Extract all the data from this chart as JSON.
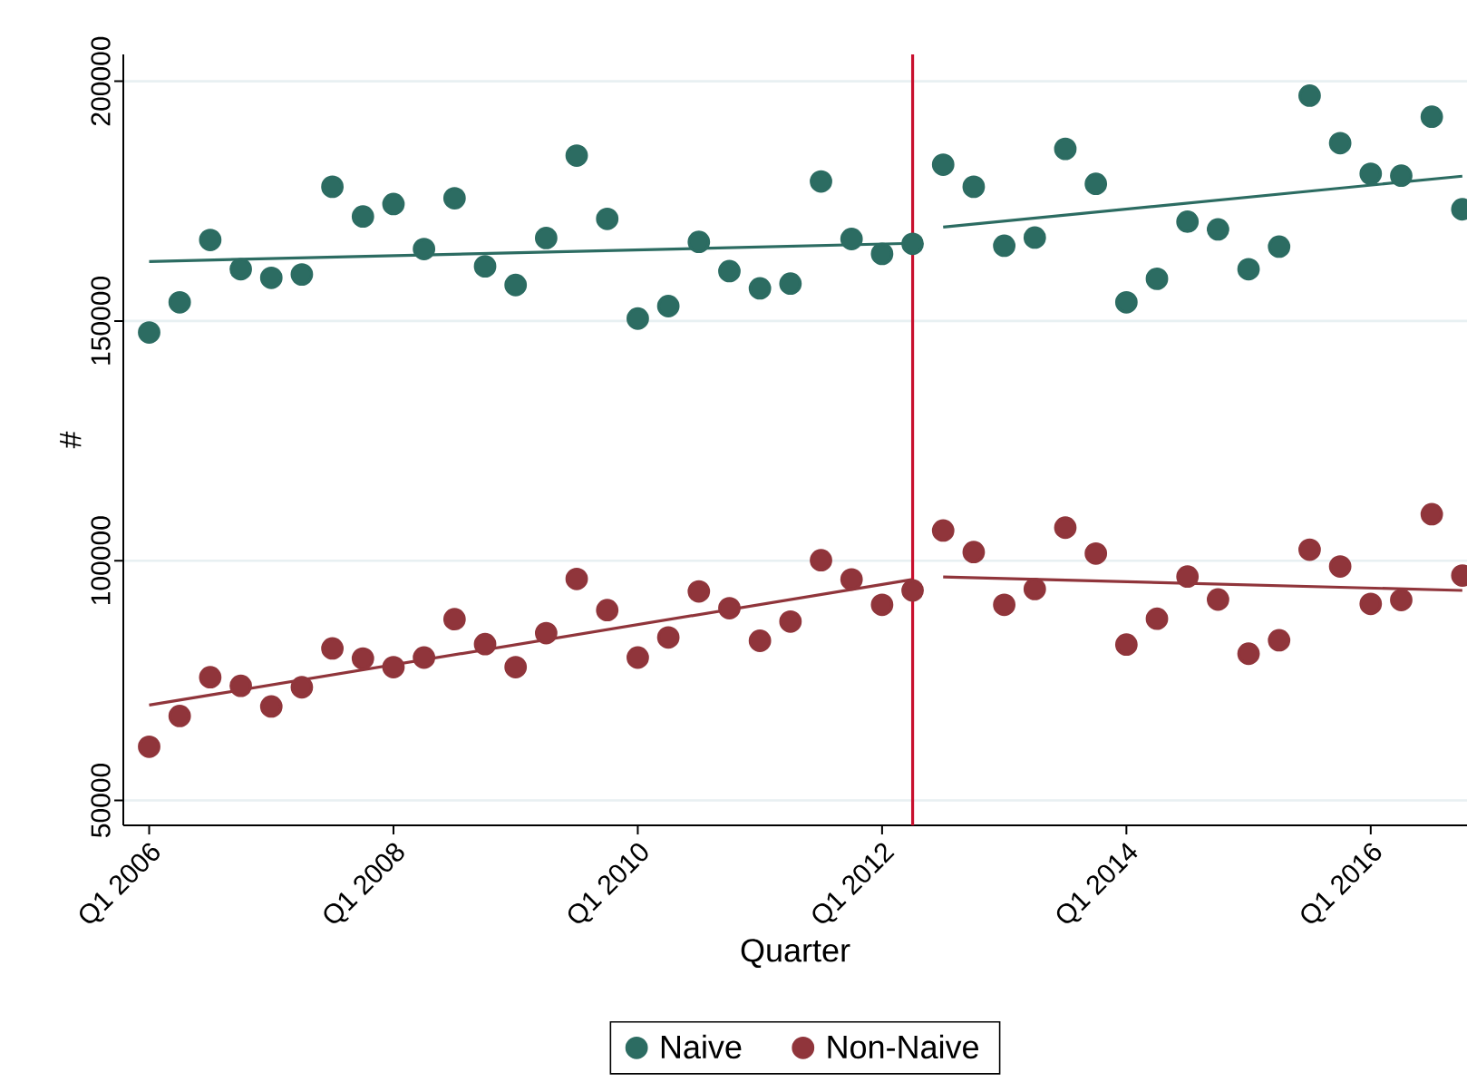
{
  "chart_data": {
    "type": "scatter",
    "xlabel": "Quarter",
    "ylabel": "#",
    "x": [
      "2006-01",
      "2006-04",
      "2006-07",
      "2006-10",
      "2007-01",
      "2007-04",
      "2007-07",
      "2007-10",
      "2008-01",
      "2008-04",
      "2008-07",
      "2008-10",
      "2009-01",
      "2009-04",
      "2009-07",
      "2009-10",
      "2010-01",
      "2010-04",
      "2010-07",
      "2010-10",
      "2011-01",
      "2011-04",
      "2011-07",
      "2011-10",
      "2012-01",
      "2012-04",
      "2012-07",
      "2012-10",
      "2013-01",
      "2013-04",
      "2013-07",
      "2013-10",
      "2014-01",
      "2014-04",
      "2014-07",
      "2014-10",
      "2015-01",
      "2015-04",
      "2015-07",
      "2015-10",
      "2016-01",
      "2016-04",
      "2016-07",
      "2016-10"
    ],
    "series": [
      {
        "name": "Naive",
        "color": "#2c6c62",
        "values": [
          147600,
          153900,
          166900,
          160800,
          159000,
          159700,
          178000,
          171800,
          174400,
          165000,
          175600,
          161400,
          157500,
          167300,
          184500,
          171300,
          150500,
          153100,
          166500,
          160400,
          156800,
          157800,
          179100,
          167100,
          164000,
          166100,
          182600,
          178000,
          165700,
          167400,
          185900,
          178600,
          153900,
          158800,
          170700,
          169100,
          160800,
          165500,
          197000,
          187100,
          180700,
          180300,
          192600,
          173300
        ]
      },
      {
        "name": "Non-Naive",
        "color": "#90353b",
        "values": [
          61200,
          67600,
          75700,
          73900,
          69600,
          73600,
          81700,
          79600,
          77800,
          79800,
          87800,
          82600,
          77800,
          84900,
          96200,
          89700,
          79800,
          84000,
          93600,
          90100,
          83300,
          87300,
          100100,
          96100,
          90800,
          93800,
          106300,
          101800,
          90800,
          94100,
          106900,
          101500,
          82500,
          87900,
          96700,
          91900,
          80600,
          83400,
          102300,
          98800,
          91000,
          91800,
          109700,
          96900
        ]
      },
      {
        "type": "line",
        "marker": "none",
        "color": "#2c6c62",
        "x": [
          "2006-01",
          "2012-04"
        ],
        "values": [
          162400,
          166200
        ]
      },
      {
        "type": "line",
        "marker": "none",
        "color": "#2c6c62",
        "x": [
          "2012-07",
          "2016-10"
        ],
        "values": [
          169600,
          180200
        ]
      },
      {
        "type": "line",
        "marker": "none",
        "color": "#90353b",
        "x": [
          "2006-01",
          "2012-04"
        ],
        "values": [
          69900,
          96100
        ]
      },
      {
        "type": "line",
        "marker": "none",
        "color": "#90353b",
        "x": [
          "2012-07",
          "2016-10"
        ],
        "values": [
          96600,
          93800
        ]
      }
    ],
    "xlim": [
      "2005-10-15",
      "2016-10-15"
    ],
    "xticks": [
      {
        "value": "2006-01",
        "label": "Q1 2006"
      },
      {
        "value": "2008-01",
        "label": "Q1 2008"
      },
      {
        "value": "2010-01",
        "label": "Q1 2010"
      },
      {
        "value": "2012-01",
        "label": "Q1 2012"
      },
      {
        "value": "2014-01",
        "label": "Q1 2014"
      },
      {
        "value": "2016-01",
        "label": "Q1 2016"
      }
    ],
    "ylim": [
      44800,
      205600
    ],
    "yticks": [
      50000,
      100000,
      150000,
      200000
    ],
    "ref_lines": [
      {
        "axis": "x",
        "value": "2012-04",
        "color": "#c8102e"
      }
    ],
    "grid": "y",
    "legend": "bottom",
    "marker": "circle",
    "line_style": "solid"
  }
}
